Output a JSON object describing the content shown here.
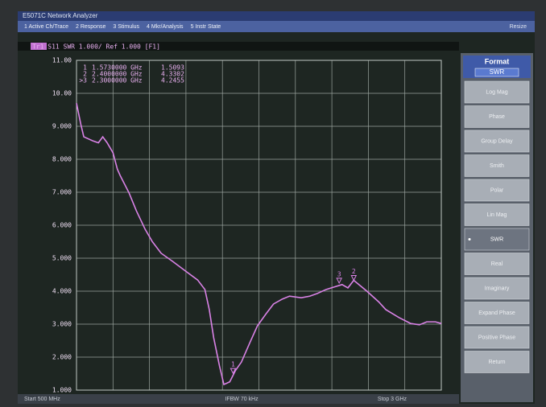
{
  "window": {
    "title": "E5071C Network Analyzer",
    "menu": [
      "1 Active Ch/Trace",
      "2 Response",
      "3 Stimulus",
      "4 Mkr/Analysis",
      "5 Instr State"
    ],
    "resize": "Resize"
  },
  "trace_header": "Tr1 S11 SWR 1.000/ Ref 1.000 [F1]",
  "chart_data": {
    "type": "line",
    "x": [
      0.5,
      0.53,
      0.55,
      0.61,
      0.65,
      0.68,
      0.71,
      0.75,
      0.78,
      0.8,
      0.86,
      0.91,
      0.97,
      1.02,
      1.08,
      1.16,
      1.25,
      1.33,
      1.38,
      1.41,
      1.44,
      1.48,
      1.51,
      1.55,
      1.59,
      1.63,
      1.69,
      1.74,
      1.8,
      1.85,
      1.91,
      1.96,
      2.04,
      2.1,
      2.15,
      2.21,
      2.26,
      2.32,
      2.36,
      2.4,
      2.49,
      2.57,
      2.62,
      2.71,
      2.79,
      2.85,
      2.9,
      2.96,
      3.0
    ],
    "series": [
      {
        "color": "#d982e6",
        "values": [
          9.7,
          9.05,
          8.68,
          8.56,
          8.5,
          8.68,
          8.5,
          8.2,
          7.7,
          7.5,
          6.98,
          6.44,
          5.88,
          5.5,
          5.15,
          4.9,
          4.6,
          4.34,
          4.05,
          3.44,
          2.59,
          1.73,
          1.17,
          1.25,
          1.6,
          1.85,
          2.46,
          2.95,
          3.32,
          3.61,
          3.76,
          3.85,
          3.8,
          3.85,
          3.93,
          4.05,
          4.12,
          4.2,
          4.1,
          4.33,
          4.0,
          3.68,
          3.44,
          3.2,
          3.02,
          2.98,
          3.07,
          3.07,
          3.02
        ]
      }
    ],
    "xlim": [
      0.5,
      3.0
    ],
    "xticks": [
      0.5,
      0.75,
      1.0,
      1.25,
      1.5,
      1.75,
      2.0,
      2.25,
      2.5,
      2.75,
      3.0
    ],
    "ylim": [
      1,
      11
    ],
    "yticks": [
      {
        "value": 1,
        "label": "1.000"
      },
      {
        "value": 2,
        "label": "2.000"
      },
      {
        "value": 3,
        "label": "3.000"
      },
      {
        "value": 4,
        "label": "4.000"
      },
      {
        "value": 5,
        "label": "5.000"
      },
      {
        "value": 6,
        "label": "6.000"
      },
      {
        "value": 7,
        "label": "7.000"
      },
      {
        "value": 8,
        "label": "8.000"
      },
      {
        "value": 9,
        "label": "9.000"
      },
      {
        "value": 10,
        "label": "10.00"
      },
      {
        "value": 11,
        "label": "11.00"
      }
    ],
    "grid": true,
    "markers": [
      {
        "label": "1",
        "readout": "1",
        "x": 1.573,
        "x_label": "1.5730000 GHz",
        "y": 1.5093
      },
      {
        "label": "2",
        "readout": "2",
        "x": 2.4,
        "x_label": "2.4000000 GHz",
        "y": 4.3302
      },
      {
        "label": "3",
        "readout": ">3",
        "x": 2.3,
        "x_label": "2.3000000 GHz",
        "y": 4.2455
      }
    ]
  },
  "status": {
    "start": "Start 500 MHz",
    "ifbw": "IFBW 70 kHz",
    "stop": "Stop 3 GHz"
  },
  "softkeys": {
    "header": "Format",
    "current": "SWR",
    "keys": [
      {
        "label": "Log Mag"
      },
      {
        "label": "Phase"
      },
      {
        "label": "Group Delay"
      },
      {
        "label": "Smith"
      },
      {
        "label": "Polar"
      },
      {
        "label": "Lin Mag"
      },
      {
        "label": "SWR",
        "selected": true
      },
      {
        "label": "Real"
      },
      {
        "label": "Imaginary"
      },
      {
        "label": "Expand Phase"
      },
      {
        "label": "Positive Phase"
      },
      {
        "label": "Return"
      }
    ]
  }
}
